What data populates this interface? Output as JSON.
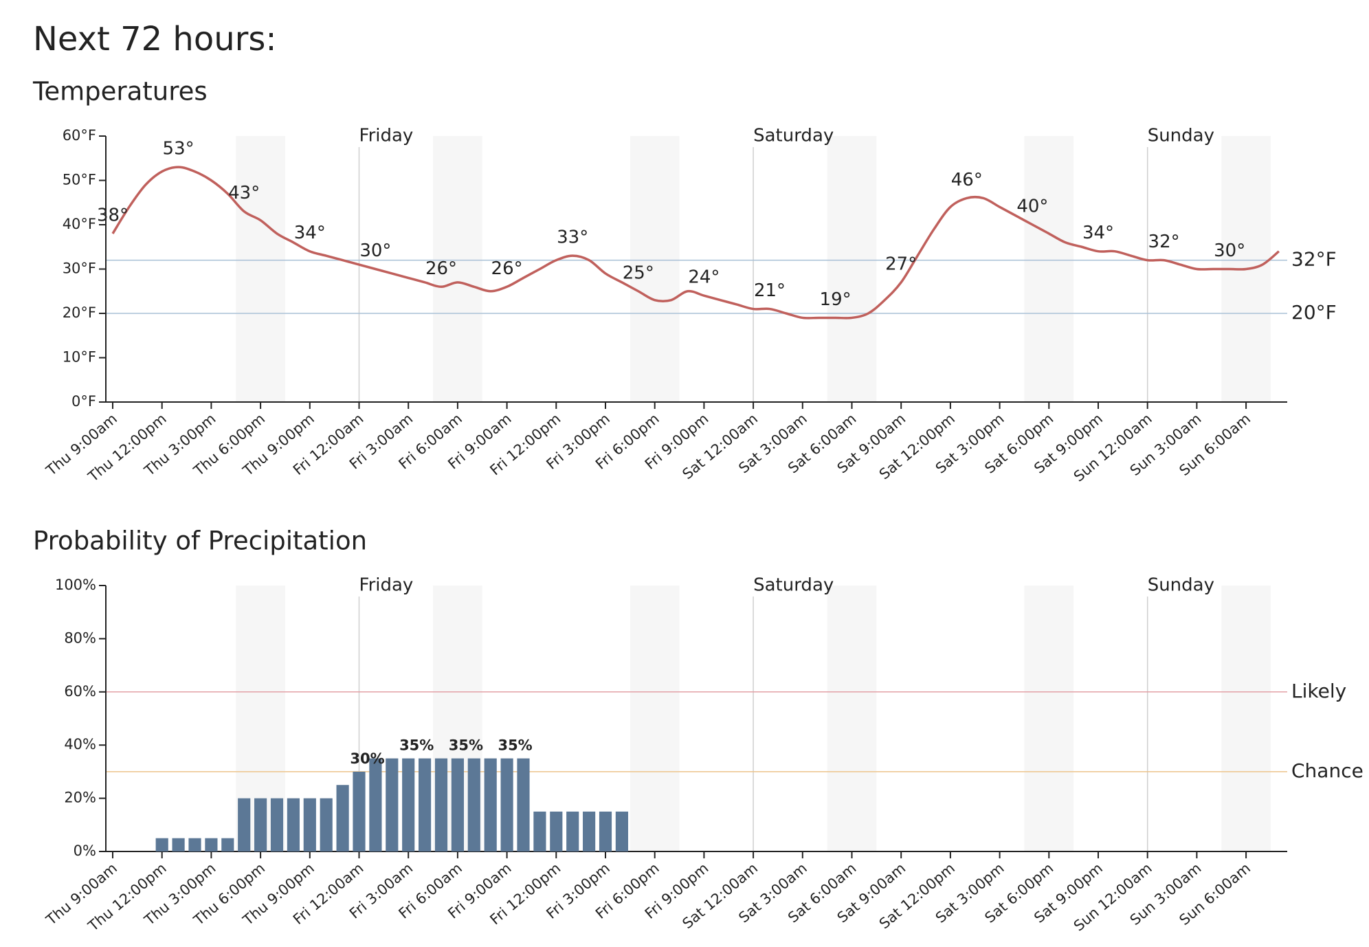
{
  "title": "Next 72 hours:",
  "chart_data": [
    {
      "type": "line",
      "title": "Temperatures",
      "color": "#c0605c",
      "categories": [
        "Thu 9:00am",
        null,
        null,
        "Thu 12:00pm",
        null,
        null,
        "Thu 3:00pm",
        null,
        null,
        "Thu 6:00pm",
        null,
        null,
        "Thu 9:00pm",
        null,
        null,
        "Fri 12:00am",
        null,
        null,
        "Fri 3:00am",
        null,
        null,
        "Fri 6:00am",
        null,
        null,
        "Fri 9:00am",
        null,
        null,
        "Fri 12:00pm",
        null,
        null,
        "Fri 3:00pm",
        null,
        null,
        "Fri 6:00pm",
        null,
        null,
        "Fri 9:00pm",
        null,
        null,
        "Sat 12:00am",
        null,
        null,
        "Sat 3:00am",
        null,
        null,
        "Sat 6:00am",
        null,
        null,
        "Sat 9:00am",
        null,
        null,
        "Sat 12:00pm",
        null,
        null,
        "Sat 3:00pm",
        null,
        null,
        "Sat 6:00pm",
        null,
        null,
        "Sat 9:00pm",
        null,
        null,
        "Sun 12:00am",
        null,
        null,
        "Sun 3:00am",
        null,
        null,
        "Sun 6:00am",
        null,
        null
      ],
      "day_labels": [
        null,
        null,
        null,
        null,
        null,
        null,
        null,
        null,
        null,
        null,
        null,
        null,
        null,
        null,
        null,
        "Friday",
        null,
        null,
        null,
        null,
        null,
        null,
        null,
        null,
        null,
        null,
        null,
        null,
        null,
        null,
        null,
        null,
        null,
        null,
        null,
        null,
        null,
        null,
        null,
        "Saturday",
        null,
        null,
        null,
        null,
        null,
        null,
        null,
        null,
        null,
        null,
        null,
        null,
        null,
        null,
        null,
        null,
        null,
        null,
        null,
        null,
        null,
        null,
        null,
        "Sunday",
        null,
        null,
        null,
        null,
        null,
        null,
        null,
        null
      ],
      "values": [
        38,
        44,
        49,
        52,
        53,
        52,
        50,
        47,
        43,
        41,
        38,
        36,
        34,
        33,
        32,
        31,
        30,
        29,
        28,
        27,
        26,
        27,
        26,
        25,
        26,
        28,
        30,
        32,
        33,
        32,
        29,
        27,
        25,
        23,
        23,
        25,
        24,
        23,
        22,
        21,
        21,
        20,
        19,
        19,
        19,
        19,
        20,
        23,
        27,
        33,
        39,
        44,
        46,
        46,
        44,
        42,
        40,
        38,
        36,
        35,
        34,
        34,
        33,
        32,
        32,
        31,
        30,
        30,
        30,
        30,
        31,
        34
      ],
      "value_labels": [
        "38°",
        null,
        null,
        null,
        "53°",
        null,
        null,
        null,
        "43°",
        null,
        null,
        null,
        "34°",
        null,
        null,
        null,
        "30°",
        null,
        null,
        null,
        "26°",
        null,
        null,
        null,
        "26°",
        null,
        null,
        null,
        "33°",
        null,
        null,
        null,
        "25°",
        null,
        null,
        null,
        "24°",
        null,
        null,
        null,
        "21°",
        null,
        null,
        null,
        "19°",
        null,
        null,
        null,
        "27°",
        null,
        null,
        null,
        "46°",
        null,
        null,
        null,
        "40°",
        null,
        null,
        null,
        "34°",
        null,
        null,
        null,
        "32°",
        null,
        null,
        null,
        "30°",
        null,
        null,
        null
      ],
      "ylim": [
        0,
        60
      ],
      "yticks": [
        {
          "value": 0,
          "label": "0°F"
        },
        {
          "value": 10,
          "label": "10°F"
        },
        {
          "value": 20,
          "label": "20°F"
        },
        {
          "value": 30,
          "label": "30°F"
        },
        {
          "value": 40,
          "label": "40°F"
        },
        {
          "value": 50,
          "label": "50°F"
        },
        {
          "value": 60,
          "label": "60°F"
        }
      ],
      "reference_lines": [
        {
          "value": 32,
          "label": "32°F",
          "color": "#a9c0d6"
        },
        {
          "value": 20,
          "label": "20°F",
          "color": "#a9c0d6"
        }
      ]
    },
    {
      "type": "bar",
      "title": "Probability of Precipitation",
      "color": "#5c7896",
      "categories": [
        "Thu 9:00am",
        null,
        null,
        "Thu 12:00pm",
        null,
        null,
        "Thu 3:00pm",
        null,
        null,
        "Thu 6:00pm",
        null,
        null,
        "Thu 9:00pm",
        null,
        null,
        "Fri 12:00am",
        null,
        null,
        "Fri 3:00am",
        null,
        null,
        "Fri 6:00am",
        null,
        null,
        "Fri 9:00am",
        null,
        null,
        "Fri 12:00pm",
        null,
        null,
        "Fri 3:00pm",
        null,
        null,
        "Fri 6:00pm",
        null,
        null,
        "Fri 9:00pm",
        null,
        null,
        "Sat 12:00am",
        null,
        null,
        "Sat 3:00am",
        null,
        null,
        "Sat 6:00am",
        null,
        null,
        "Sat 9:00am",
        null,
        null,
        "Sat 12:00pm",
        null,
        null,
        "Sat 3:00pm",
        null,
        null,
        "Sat 6:00pm",
        null,
        null,
        "Sat 9:00pm",
        null,
        null,
        "Sun 12:00am",
        null,
        null,
        "Sun 3:00am",
        null,
        null,
        "Sun 6:00am",
        null,
        null
      ],
      "day_labels": [
        null,
        null,
        null,
        null,
        null,
        null,
        null,
        null,
        null,
        null,
        null,
        null,
        null,
        null,
        null,
        "Friday",
        null,
        null,
        null,
        null,
        null,
        null,
        null,
        null,
        null,
        null,
        null,
        null,
        null,
        null,
        null,
        null,
        null,
        null,
        null,
        null,
        null,
        null,
        null,
        "Saturday",
        null,
        null,
        null,
        null,
        null,
        null,
        null,
        null,
        null,
        null,
        null,
        null,
        null,
        null,
        null,
        null,
        null,
        null,
        null,
        null,
        null,
        null,
        null,
        "Sunday",
        null,
        null,
        null,
        null,
        null,
        null,
        null,
        null
      ],
      "values": [
        0,
        0,
        0,
        5,
        5,
        5,
        5,
        5,
        20,
        20,
        20,
        20,
        20,
        20,
        25,
        30,
        35,
        35,
        35,
        35,
        35,
        35,
        35,
        35,
        35,
        35,
        15,
        15,
        15,
        15,
        15,
        15,
        0,
        0,
        0,
        0,
        0,
        0,
        0,
        0,
        0,
        0,
        0,
        0,
        0,
        0,
        0,
        0,
        0,
        0,
        0,
        0,
        0,
        0,
        0,
        0,
        0,
        0,
        0,
        0,
        0,
        0,
        0,
        0,
        0,
        0,
        0,
        0,
        0,
        0,
        0,
        0
      ],
      "value_labels": [
        null,
        null,
        null,
        null,
        null,
        null,
        null,
        null,
        null,
        null,
        null,
        null,
        null,
        null,
        null,
        "30%",
        null,
        null,
        "35%",
        null,
        null,
        "35%",
        null,
        null,
        "35%",
        null,
        null,
        null,
        null,
        null,
        null,
        null,
        null,
        null,
        null,
        null,
        null,
        null,
        null,
        null,
        null,
        null,
        null,
        null,
        null,
        null,
        null,
        null,
        null,
        null,
        null,
        null,
        null,
        null,
        null,
        null,
        null,
        null,
        null,
        null,
        null,
        null,
        null,
        null,
        null,
        null,
        null,
        null,
        null,
        null,
        null,
        null
      ],
      "ylim": [
        0,
        100
      ],
      "yticks": [
        {
          "value": 0,
          "label": "0%"
        },
        {
          "value": 20,
          "label": "20%"
        },
        {
          "value": 40,
          "label": "40%"
        },
        {
          "value": 60,
          "label": "60%"
        },
        {
          "value": 80,
          "label": "80%"
        },
        {
          "value": 100,
          "label": "100%"
        }
      ],
      "reference_lines": [
        {
          "value": 60,
          "label": "Likely",
          "color": "#e3a0a6"
        },
        {
          "value": 30,
          "label": "Chance",
          "color": "#ecc38a"
        }
      ]
    }
  ]
}
